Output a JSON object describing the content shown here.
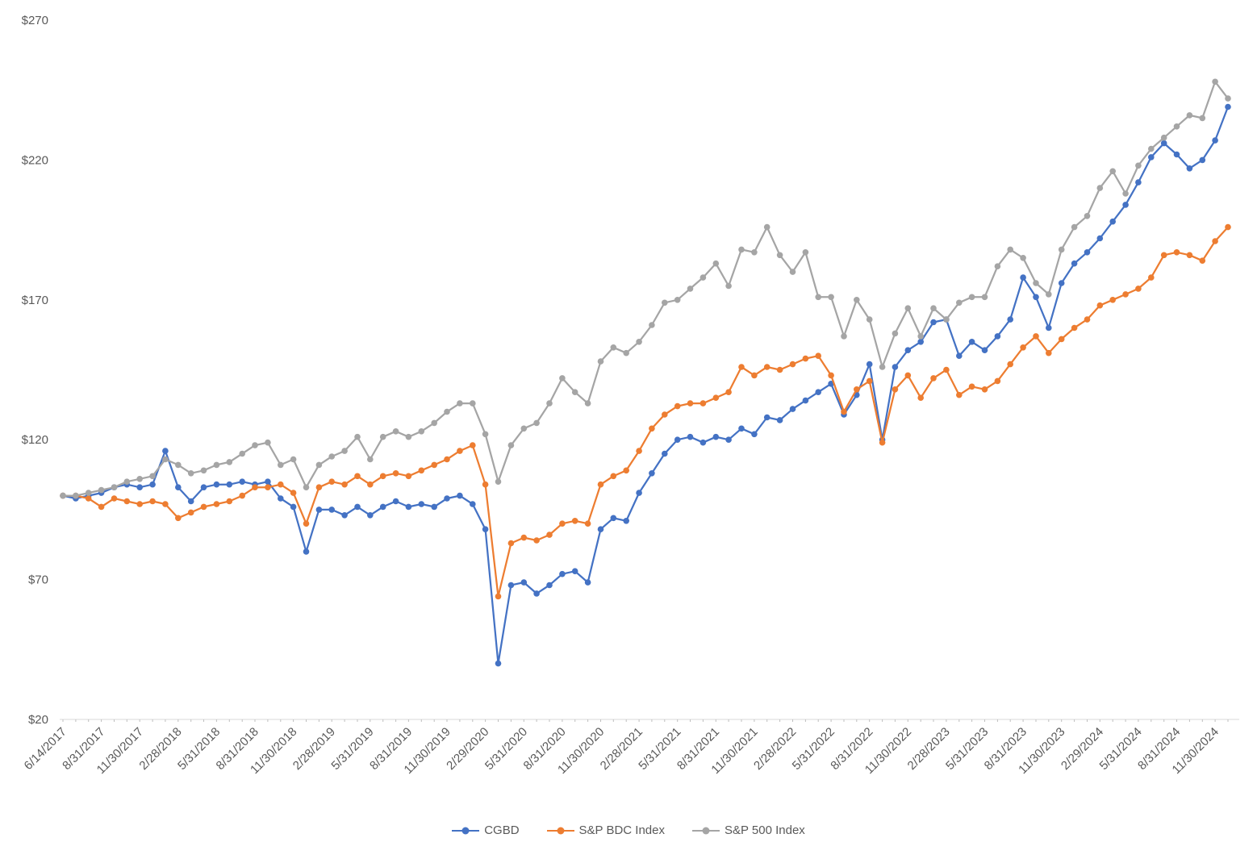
{
  "page": {
    "background_color": "#ffffff"
  },
  "chart_data": {
    "type": "line",
    "title": "",
    "xlabel": "",
    "ylabel": "",
    "grid": false,
    "marker": "circle",
    "legend_position": "bottom",
    "ylim": [
      20,
      270
    ],
    "yticks": [
      {
        "value": 270,
        "label": "$270"
      },
      {
        "value": 220,
        "label": "$220"
      },
      {
        "value": 170,
        "label": "$170"
      },
      {
        "value": 120,
        "label": "$120"
      },
      {
        "value": 70,
        "label": "$70"
      },
      {
        "value": 20,
        "label": "$20"
      }
    ],
    "axis_color": "#D9D9D9",
    "tick_color": "#BFBFBF",
    "label_color": "#595959",
    "x_label_every": 3,
    "x_tick_labels": [
      "6/14/2017",
      "8/31/2017",
      "11/30/2017",
      "2/28/2018",
      "5/31/2018",
      "8/31/2018",
      "11/30/2018",
      "2/28/2019",
      "5/31/2019",
      "8/31/2019",
      "11/30/2019",
      "2/29/2020",
      "5/31/2020",
      "8/31/2020",
      "11/30/2020",
      "2/28/2021",
      "5/31/2021",
      "8/31/2021",
      "11/30/2021",
      "2/28/2022",
      "5/31/2022",
      "8/31/2022",
      "11/30/2022",
      "2/28/2023",
      "5/31/2023",
      "8/31/2023",
      "11/30/2023",
      "2/29/2024",
      "5/31/2024",
      "8/31/2024",
      "11/30/2024"
    ],
    "x": [
      "6/14/2017",
      "6/30/2017",
      "7/31/2017",
      "8/31/2017",
      "9/30/2017",
      "10/31/2017",
      "11/30/2017",
      "12/31/2017",
      "1/31/2018",
      "2/28/2018",
      "3/31/2018",
      "4/30/2018",
      "5/31/2018",
      "6/30/2018",
      "7/31/2018",
      "8/31/2018",
      "9/30/2018",
      "10/31/2018",
      "11/30/2018",
      "12/31/2018",
      "1/31/2019",
      "2/28/2019",
      "3/31/2019",
      "4/30/2019",
      "5/31/2019",
      "6/30/2019",
      "7/31/2019",
      "8/31/2019",
      "9/30/2019",
      "10/31/2019",
      "11/30/2019",
      "12/31/2019",
      "1/31/2020",
      "2/29/2020",
      "3/31/2020",
      "4/30/2020",
      "5/31/2020",
      "6/30/2020",
      "7/31/2020",
      "8/31/2020",
      "9/30/2020",
      "10/31/2020",
      "11/30/2020",
      "12/31/2020",
      "1/31/2021",
      "2/28/2021",
      "3/31/2021",
      "4/30/2021",
      "5/31/2021",
      "6/30/2021",
      "7/31/2021",
      "8/31/2021",
      "9/30/2021",
      "10/31/2021",
      "11/30/2021",
      "12/31/2021",
      "1/31/2022",
      "2/28/2022",
      "3/31/2022",
      "4/30/2022",
      "5/31/2022",
      "6/30/2022",
      "7/31/2022",
      "8/31/2022",
      "9/30/2022",
      "10/31/2022",
      "11/30/2022",
      "12/31/2022",
      "1/31/2023",
      "2/28/2023",
      "3/31/2023",
      "4/30/2023",
      "5/31/2023",
      "6/30/2023",
      "7/31/2023",
      "8/31/2023",
      "9/30/2023",
      "10/31/2023",
      "11/30/2023",
      "12/31/2023",
      "1/31/2024",
      "2/29/2024",
      "3/31/2024",
      "4/30/2024",
      "5/31/2024",
      "6/30/2024",
      "7/31/2024",
      "8/31/2024",
      "9/30/2024",
      "10/31/2024",
      "11/30/2024",
      "12/31/2024"
    ],
    "series": [
      {
        "id": "cgbd",
        "name": "CGBD",
        "color": "#4472C4",
        "values": [
          100,
          99,
          100,
          101,
          103,
          104,
          103,
          104,
          116,
          103,
          98,
          103,
          104,
          104,
          105,
          104,
          105,
          99,
          96,
          80,
          95,
          95,
          93,
          96,
          93,
          96,
          98,
          96,
          97,
          96,
          99,
          100,
          97,
          88,
          40,
          68,
          69,
          65,
          68,
          72,
          73,
          69,
          88,
          92,
          91,
          101,
          108,
          115,
          120,
          121,
          119,
          121,
          120,
          124,
          122,
          128,
          127,
          131,
          134,
          137,
          140,
          129,
          136,
          147,
          120,
          146,
          152,
          155,
          162,
          163,
          150,
          155,
          152,
          157,
          163,
          178,
          171,
          160,
          176,
          183,
          187,
          192,
          198,
          204,
          212,
          221,
          226,
          222,
          217,
          220,
          227,
          239
        ]
      },
      {
        "id": "sp-bdc-index",
        "name": "S&P BDC Index",
        "color": "#ED7D31",
        "values": [
          100,
          100,
          99,
          96,
          99,
          98,
          97,
          98,
          97,
          92,
          94,
          96,
          97,
          98,
          100,
          103,
          103,
          104,
          101,
          90,
          103,
          105,
          104,
          107,
          104,
          107,
          108,
          107,
          109,
          111,
          113,
          116,
          118,
          104,
          64,
          83,
          85,
          84,
          86,
          90,
          91,
          90,
          104,
          107,
          109,
          116,
          124,
          129,
          132,
          133,
          133,
          135,
          137,
          146,
          143,
          146,
          145,
          147,
          149,
          150,
          143,
          130,
          138,
          141,
          119,
          138,
          143,
          135,
          142,
          145,
          136,
          139,
          138,
          141,
          147,
          153,
          157,
          151,
          156,
          160,
          163,
          168,
          170,
          172,
          174,
          178,
          186,
          187,
          186,
          184,
          191,
          196
        ]
      },
      {
        "id": "sp-500-index",
        "name": "S&P 500 Index",
        "color": "#A5A5A5",
        "values": [
          100,
          100,
          101,
          102,
          103,
          105,
          106,
          107,
          113,
          111,
          108,
          109,
          111,
          112,
          115,
          118,
          119,
          111,
          113,
          103,
          111,
          114,
          116,
          121,
          113,
          121,
          123,
          121,
          123,
          126,
          130,
          133,
          133,
          122,
          105,
          118,
          124,
          126,
          133,
          142,
          137,
          133,
          148,
          153,
          151,
          155,
          161,
          169,
          170,
          174,
          178,
          183,
          175,
          188,
          187,
          196,
          186,
          180,
          187,
          171,
          171,
          157,
          170,
          163,
          146,
          158,
          167,
          157,
          167,
          163,
          169,
          171,
          171,
          182,
          188,
          185,
          176,
          172,
          188,
          196,
          200,
          210,
          216,
          208,
          218,
          224,
          228,
          232,
          236,
          235,
          248,
          242
        ]
      }
    ]
  }
}
